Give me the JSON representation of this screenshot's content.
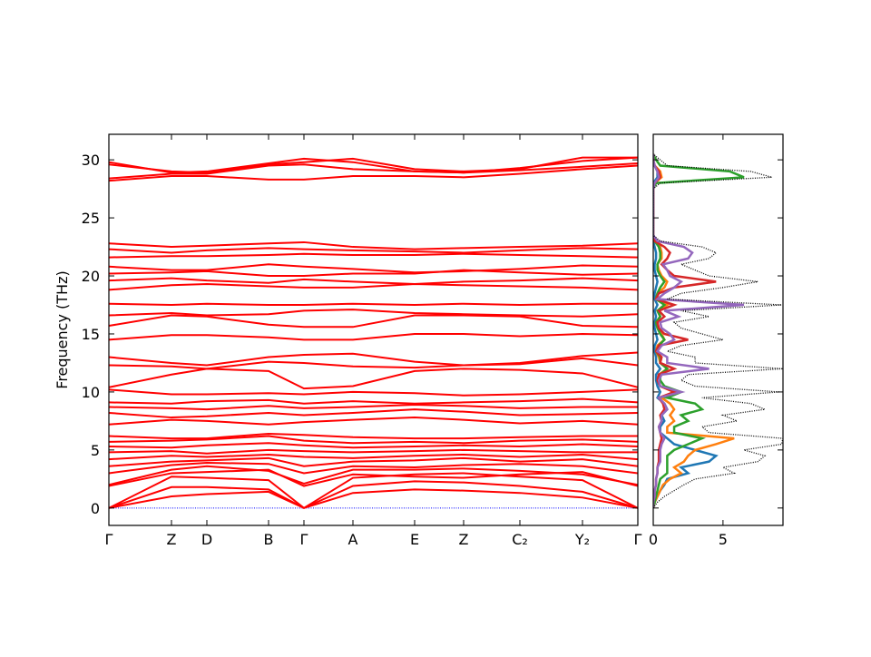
{
  "chart_data": [
    {
      "type": "band",
      "ylabel": "Frequency (THz)",
      "xlim": [
        0,
        5.83
      ],
      "ylim": [
        -1.5,
        32.2
      ],
      "yticks": [
        0,
        5,
        10,
        15,
        20,
        25,
        30
      ],
      "xticks": [
        {
          "value": 0,
          "label": "Γ"
        },
        {
          "value": 0.69,
          "label": "Z"
        },
        {
          "value": 1.08,
          "label": "D"
        },
        {
          "value": 1.76,
          "label": "B"
        },
        {
          "value": 2.15,
          "label": "Γ"
        },
        {
          "value": 2.69,
          "label": "A"
        },
        {
          "value": 3.37,
          "label": "E"
        },
        {
          "value": 3.91,
          "label": "Z"
        },
        {
          "value": 4.53,
          "label": "C₂"
        },
        {
          "value": 5.22,
          "label": "Y₂"
        },
        {
          "value": 5.83,
          "label": "Γ"
        }
      ],
      "x": [
        0,
        0.69,
        1.08,
        1.76,
        2.15,
        2.69,
        3.37,
        3.91,
        4.53,
        5.22,
        5.83
      ],
      "band_color": "#ff0000",
      "hline": 0,
      "hline_color": "#0000ff",
      "bands": [
        [
          0,
          1.0,
          1.2,
          1.4,
          0,
          1.3,
          1.6,
          1.5,
          1.3,
          0.9,
          0
        ],
        [
          0,
          1.8,
          1.8,
          1.6,
          0,
          1.9,
          2.3,
          2.2,
          1.9,
          1.4,
          0
        ],
        [
          0,
          2.7,
          2.6,
          2.4,
          0,
          2.6,
          2.9,
          3.0,
          2.7,
          2.4,
          0
        ],
        [
          1.9,
          3.0,
          3.1,
          3.3,
          1.9,
          2.9,
          2.7,
          2.6,
          2.9,
          3.1,
          1.9
        ],
        [
          2.0,
          3.3,
          3.6,
          3.2,
          2.1,
          3.3,
          3.3,
          3.4,
          3.2,
          2.9,
          2.0
        ],
        [
          3.0,
          3.7,
          3.9,
          3.8,
          3.0,
          3.6,
          3.5,
          3.7,
          3.8,
          3.6,
          3.0
        ],
        [
          3.6,
          4.0,
          4.1,
          4.3,
          3.6,
          4.0,
          4.1,
          4.3,
          4.0,
          4.2,
          3.6
        ],
        [
          4.2,
          4.5,
          4.4,
          4.6,
          4.4,
          4.3,
          4.5,
          4.6,
          4.4,
          4.6,
          4.2
        ],
        [
          4.8,
          4.9,
          4.7,
          5.0,
          4.9,
          4.8,
          4.9,
          5.0,
          4.9,
          4.8,
          4.8
        ],
        [
          5.3,
          5.2,
          5.4,
          5.6,
          5.4,
          5.2,
          5.3,
          5.4,
          5.3,
          5.5,
          5.3
        ],
        [
          5.7,
          5.8,
          5.9,
          6.2,
          5.8,
          5.6,
          5.7,
          5.6,
          5.8,
          5.9,
          5.7
        ],
        [
          6.2,
          6.0,
          6.0,
          6.4,
          6.3,
          6.1,
          6.0,
          6.0,
          6.1,
          6.2,
          6.2
        ],
        [
          7.2,
          7.6,
          7.5,
          7.2,
          7.4,
          7.6,
          7.8,
          7.6,
          7.3,
          7.5,
          7.2
        ],
        [
          8.2,
          7.8,
          7.9,
          8.2,
          8.0,
          8.2,
          8.5,
          8.3,
          8.0,
          8.1,
          8.2
        ],
        [
          8.7,
          8.6,
          8.5,
          8.8,
          8.6,
          8.7,
          8.9,
          8.8,
          8.6,
          8.7,
          8.7
        ],
        [
          9.1,
          9.0,
          9.2,
          9.3,
          9.0,
          9.2,
          9.0,
          9.1,
          9.2,
          9.4,
          9.1
        ],
        [
          10.2,
          9.8,
          9.8,
          9.9,
          9.8,
          10.0,
          9.9,
          9.7,
          9.8,
          10.0,
          10.2
        ],
        [
          10.4,
          11.5,
          12.0,
          11.8,
          10.3,
          10.5,
          11.8,
          12.0,
          11.9,
          11.6,
          10.4
        ],
        [
          12.3,
          12.2,
          12.0,
          12.6,
          12.5,
          12.2,
          12.1,
          12.3,
          12.4,
          12.9,
          12.3
        ],
        [
          13.0,
          12.5,
          12.3,
          13.0,
          13.2,
          13.3,
          12.6,
          12.3,
          12.5,
          13.1,
          13.4
        ],
        [
          14.5,
          14.9,
          14.9,
          14.7,
          14.5,
          14.5,
          15.0,
          15.0,
          14.8,
          15.0,
          14.9
        ],
        [
          15.7,
          16.6,
          16.5,
          15.8,
          15.6,
          15.6,
          16.6,
          16.6,
          16.5,
          15.7,
          15.6
        ],
        [
          16.6,
          16.8,
          16.6,
          16.7,
          17.0,
          17.1,
          16.8,
          16.7,
          16.6,
          16.5,
          16.7
        ],
        [
          17.6,
          17.5,
          17.6,
          17.5,
          17.5,
          17.6,
          17.5,
          17.6,
          17.5,
          17.6,
          17.6
        ],
        [
          18.8,
          19.2,
          19.3,
          19.1,
          19.0,
          19.0,
          19.3,
          19.2,
          19.1,
          19.0,
          18.8
        ],
        [
          19.6,
          19.8,
          19.6,
          19.4,
          19.7,
          19.5,
          19.3,
          19.5,
          19.6,
          19.8,
          19.6
        ],
        [
          20.2,
          20.3,
          20.4,
          20.0,
          20.0,
          20.2,
          20.2,
          20.5,
          20.3,
          20.1,
          20.2
        ],
        [
          20.8,
          20.5,
          20.5,
          21.0,
          20.8,
          20.6,
          20.3,
          20.4,
          20.6,
          20.9,
          20.8
        ],
        [
          21.6,
          21.7,
          21.7,
          21.8,
          21.9,
          21.8,
          21.8,
          21.9,
          21.8,
          21.7,
          21.6
        ],
        [
          22.3,
          22.0,
          22.2,
          22.4,
          22.3,
          22.2,
          22.1,
          22.0,
          22.2,
          22.4,
          22.3
        ],
        [
          22.8,
          22.5,
          22.6,
          22.8,
          22.9,
          22.5,
          22.3,
          22.4,
          22.5,
          22.6,
          22.8
        ],
        [
          28.2,
          28.6,
          28.6,
          28.3,
          28.3,
          28.6,
          28.6,
          28.5,
          28.8,
          29.2,
          29.5
        ],
        [
          28.4,
          28.8,
          28.8,
          29.5,
          29.6,
          29.2,
          29.0,
          28.9,
          29.1,
          29.4,
          29.7
        ],
        [
          29.6,
          29.0,
          28.9,
          29.6,
          29.8,
          30.1,
          29.2,
          29.0,
          29.2,
          30.2,
          30.2
        ],
        [
          29.8,
          28.9,
          29.0,
          29.7,
          30.1,
          29.8,
          29.0,
          28.9,
          29.3,
          29.9,
          30.2
        ]
      ]
    },
    {
      "type": "dos",
      "xlim": [
        0,
        9.3
      ],
      "xticks": [
        0,
        5
      ],
      "y": [
        0,
        0.5,
        1,
        1.5,
        2,
        2.5,
        3,
        3.5,
        4,
        4.5,
        5,
        5.5,
        6,
        6.5,
        7,
        7.5,
        8,
        8.5,
        9,
        9.5,
        10,
        10.5,
        11,
        11.5,
        12,
        12.5,
        13,
        13.5,
        14,
        14.5,
        15,
        15.5,
        16,
        16.5,
        17,
        17.5,
        18,
        18.5,
        19,
        19.5,
        20,
        20.5,
        21,
        21.5,
        22,
        22.5,
        23,
        23.5,
        24,
        24.5,
        25,
        25.5,
        26,
        26.5,
        27,
        27.5,
        28,
        28.5,
        29,
        29.5,
        30,
        30.5
      ],
      "series": [
        {
          "color": "#1f77b4",
          "values": [
            0,
            0.1,
            0.3,
            0.5,
            0.8,
            1,
            2.5,
            2,
            4,
            4.5,
            3,
            1.5,
            1,
            0.5,
            0.5,
            0.8,
            0.6,
            1,
            0.8,
            0.3,
            0.5,
            0.3,
            0.2,
            0.2,
            0.5,
            0.2,
            0.2,
            0.1,
            0.1,
            0.3,
            0.2,
            0.1,
            0.1,
            0.2,
            0.1,
            0.3,
            0.1,
            0.1,
            0.2,
            0.3,
            0.2,
            0.1,
            0.1,
            0.2,
            0.2,
            0.1,
            0,
            0,
            0,
            0,
            0,
            0,
            0,
            0,
            0,
            0,
            0,
            0.3,
            0.3,
            0.1,
            0,
            0
          ]
        },
        {
          "color": "#ff7f0e",
          "values": [
            0,
            0.1,
            0.3,
            0.5,
            0.7,
            1.2,
            2,
            1.5,
            2.2,
            2.5,
            3,
            4.5,
            5.8,
            1,
            1,
            1.5,
            1.2,
            1.5,
            1.2,
            0.6,
            1.5,
            0.5,
            0.4,
            0.4,
            1,
            0.5,
            0.4,
            0.2,
            0.3,
            0.8,
            0.6,
            0.3,
            0.2,
            0.5,
            0.3,
            1,
            0.2,
            0.3,
            0.8,
            1,
            0.6,
            0.4,
            0.3,
            0.6,
            0.6,
            0.5,
            0.1,
            0,
            0,
            0,
            0,
            0,
            0,
            0,
            0,
            0,
            0.1,
            0.6,
            0.5,
            0.1,
            0,
            0
          ]
        },
        {
          "color": "#2ca02c",
          "values": [
            0,
            0.1,
            0.2,
            0.3,
            0.4,
            0.5,
            1,
            1,
            1,
            1,
            1.5,
            2.5,
            3.5,
            1.5,
            1.5,
            2.5,
            2,
            3.5,
            3,
            1,
            2,
            0.8,
            0.5,
            0.5,
            1,
            0.5,
            0.5,
            0.2,
            0.4,
            0.8,
            0.5,
            0.3,
            0.2,
            0.5,
            0.3,
            0.8,
            0.2,
            0.3,
            0.5,
            0.8,
            0.5,
            0.3,
            0.3,
            0.5,
            0.5,
            0.4,
            0.1,
            0,
            0,
            0,
            0,
            0,
            0,
            0,
            0,
            0,
            0.2,
            6.5,
            5.5,
            0.5,
            0.2,
            0
          ]
        },
        {
          "color": "#d62728",
          "values": [
            0,
            0,
            0.1,
            0.1,
            0.2,
            0.2,
            0.3,
            0.3,
            0.4,
            0.4,
            0.4,
            0.5,
            0.6,
            0.5,
            0.4,
            0.6,
            0.5,
            0.8,
            0.7,
            0.4,
            1.5,
            0.5,
            0.3,
            0.4,
            1.5,
            0.5,
            0.6,
            0.2,
            0.4,
            2.5,
            0.8,
            0.4,
            0.3,
            0.8,
            0.4,
            1.5,
            0.2,
            0.4,
            1.5,
            4.5,
            1.5,
            1,
            0.6,
            1,
            1.2,
            0.8,
            0.1,
            0,
            0,
            0,
            0,
            0,
            0,
            0,
            0,
            0,
            0.1,
            0.5,
            0.4,
            0.1,
            0,
            0
          ]
        },
        {
          "color": "#9467bd",
          "values": [
            0,
            0,
            0.1,
            0.1,
            0.2,
            0.2,
            0.3,
            0.3,
            0.5,
            0.5,
            0.5,
            0.6,
            0.8,
            0.5,
            0.4,
            0.6,
            0.6,
            1,
            0.8,
            0.4,
            2,
            0.5,
            0.4,
            0.6,
            4,
            1,
            1,
            0.3,
            0.6,
            1.5,
            1.2,
            0.6,
            0.5,
            1.8,
            0.8,
            6.5,
            0.3,
            0.8,
            1.5,
            2,
            1.2,
            1,
            0.7,
            2.5,
            2.8,
            2.2,
            0.3,
            0,
            0,
            0,
            0,
            0,
            0,
            0,
            0,
            0,
            0.1,
            0.4,
            0.3,
            0.1,
            0,
            0
          ]
        }
      ],
      "total": {
        "color": "#000000",
        "values": [
          0,
          0.3,
          0.8,
          1.5,
          2.2,
          3,
          5.8,
          5,
          7.5,
          8,
          6.5,
          9.2,
          9.3,
          4,
          3.5,
          6,
          5,
          8,
          7,
          3.5,
          9,
          3,
          2,
          2.5,
          9.3,
          3,
          3,
          1,
          2,
          5,
          3.5,
          2,
          1.5,
          4,
          2,
          9.2,
          1,
          2,
          5,
          7.5,
          4,
          3,
          2,
          4,
          4.5,
          3.5,
          0.5,
          0,
          0,
          0,
          0,
          0,
          0,
          0,
          0,
          0,
          0.5,
          8.5,
          7,
          1,
          0.5,
          0
        ]
      }
    }
  ]
}
